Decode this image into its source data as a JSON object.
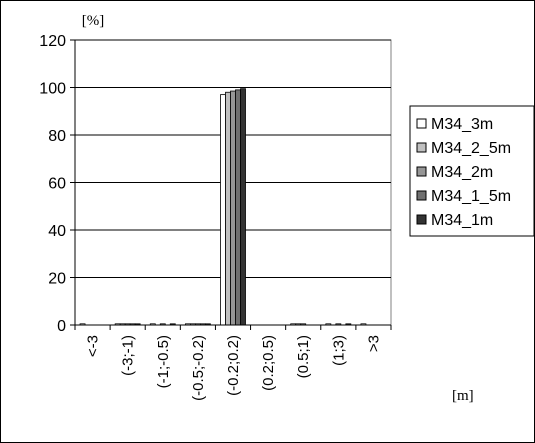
{
  "chart_data": {
    "type": "bar",
    "ylabel": "[%]",
    "xlabel": "[m]",
    "ylim": [
      0,
      120
    ],
    "yticks": [
      0,
      20,
      40,
      60,
      80,
      100,
      120
    ],
    "grid": "horizontal",
    "legend_position": "right",
    "categories": [
      "<-3",
      "(-3;-1)",
      "(-1;-0.5)",
      "(-0.5;-0.2)",
      "(-0.2;0.2)",
      "(0.2;0.5)",
      "(0.5;1)",
      "(1;3)",
      ">3"
    ],
    "series": [
      {
        "name": "M34_3m",
        "color": "#ffffff",
        "values": [
          0.5,
          0.5,
          0.5,
          0.5,
          97,
          0,
          0.5,
          0.5,
          0.5
        ]
      },
      {
        "name": "M34_2_5m",
        "color": "#c0c0c0",
        "values": [
          0,
          0.5,
          0,
          0.5,
          98,
          0,
          0.5,
          0,
          0
        ]
      },
      {
        "name": "M34_2m",
        "color": "#969696",
        "values": [
          0,
          0.5,
          0.5,
          0.5,
          98.5,
          0,
          0.5,
          0.5,
          0
        ]
      },
      {
        "name": "M34_1_5m",
        "color": "#707070",
        "values": [
          0,
          0.5,
          0,
          0.5,
          99,
          0,
          0,
          0,
          0
        ]
      },
      {
        "name": "M34_1m",
        "color": "#333333",
        "values": [
          0,
          0.5,
          0.5,
          0.5,
          99.5,
          0,
          0,
          0.5,
          0
        ]
      }
    ]
  }
}
